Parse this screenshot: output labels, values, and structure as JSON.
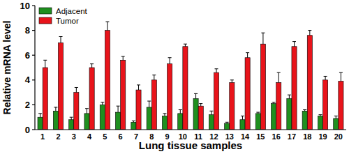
{
  "chart_data": {
    "type": "bar",
    "x_label": "Lung tissue samples",
    "y_label": "Relative mRNA level",
    "categories": [
      "1",
      "2",
      "3",
      "4",
      "5",
      "6",
      "7",
      "8",
      "9",
      "10",
      "11",
      "12",
      "13",
      "14",
      "15",
      "16",
      "17",
      "18",
      "19",
      "20"
    ],
    "series": [
      {
        "name": "Adjacent",
        "color": "#1f8f1f",
        "values": [
          1.0,
          1.5,
          0.8,
          1.3,
          2.0,
          1.4,
          0.6,
          1.8,
          1.1,
          1.3,
          2.5,
          1.2,
          0.5,
          0.8,
          1.3,
          2.1,
          2.5,
          1.5,
          1.1,
          0.9
        ],
        "errors": [
          0.3,
          0.3,
          0.2,
          0.4,
          0.2,
          0.5,
          0.1,
          0.5,
          0.2,
          0.3,
          0.4,
          0.3,
          0.1,
          0.3,
          0.1,
          0.1,
          0.3,
          0.1,
          0.1,
          0.2
        ]
      },
      {
        "name": "Tumor",
        "color": "#e8141b",
        "values": [
          5.0,
          7.0,
          3.0,
          5.0,
          8.0,
          5.6,
          3.2,
          4.0,
          5.3,
          6.7,
          1.9,
          4.6,
          3.8,
          5.8,
          6.9,
          3.8,
          6.7,
          7.6,
          4.0,
          3.9
        ],
        "errors": [
          0.6,
          0.5,
          0.4,
          0.3,
          0.7,
          0.3,
          0.4,
          0.4,
          0.5,
          0.2,
          0.2,
          0.3,
          0.2,
          0.4,
          0.9,
          0.8,
          0.4,
          0.4,
          0.3,
          0.7
        ]
      }
    ],
    "ylim": [
      0,
      10
    ],
    "yticks": [
      0,
      2,
      4,
      6,
      8,
      10
    ],
    "grid": false,
    "legend": "upper left"
  }
}
